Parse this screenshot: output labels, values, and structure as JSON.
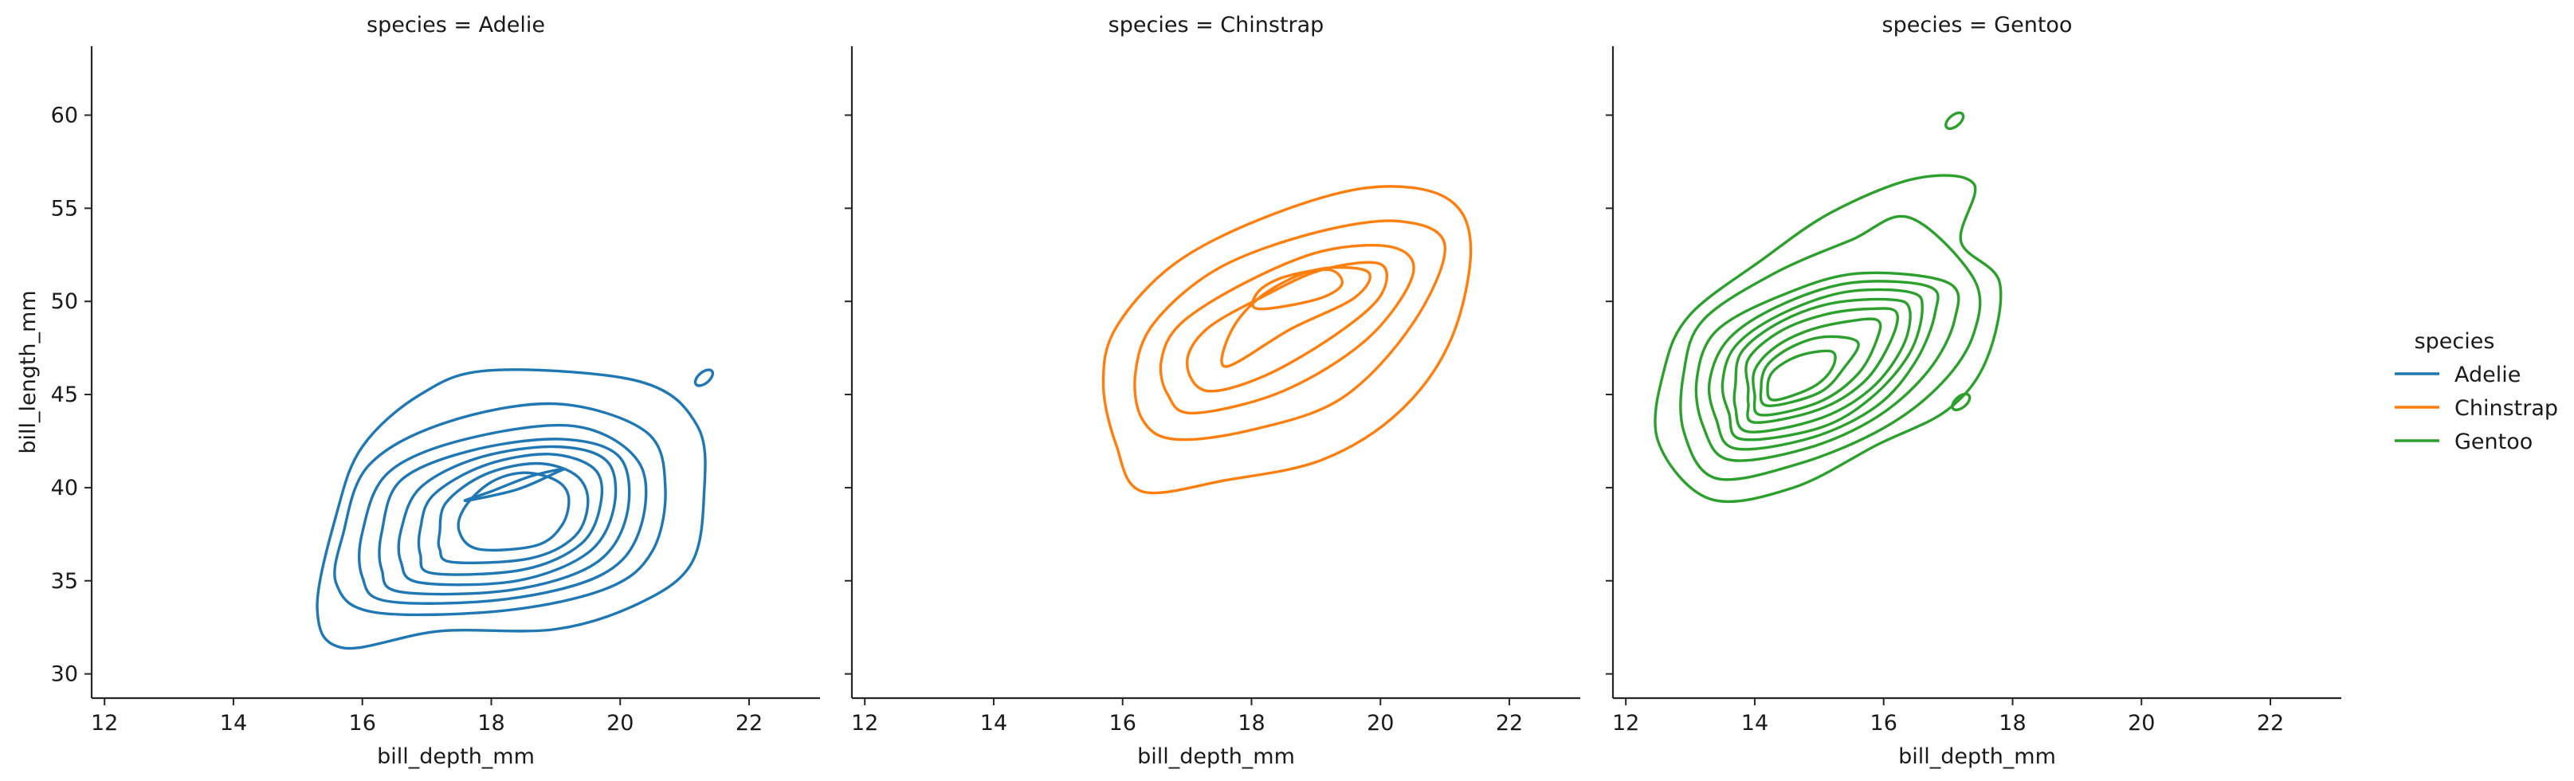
{
  "chart_data": {
    "type": "kde_contour_facets",
    "facet_variable": "species",
    "xlabel": "bill_depth_mm",
    "ylabel": "bill_length_mm",
    "xlim": [
      11.8,
      23.1
    ],
    "ylim": [
      28.7,
      63.7
    ],
    "xticks": [
      12,
      14,
      16,
      18,
      20,
      22
    ],
    "yticks": [
      30,
      35,
      40,
      45,
      50,
      55,
      60
    ],
    "legend": {
      "title": "species",
      "position": "right",
      "entries": [
        "Adelie",
        "Chinstrap",
        "Gentoo"
      ]
    },
    "panels": [
      {
        "title": "species = Adelie",
        "species": "Adelie",
        "color": "#1f77b4",
        "center": [
          18.4,
          39.6
        ],
        "outer_level": {
          "x_range": [
            15.3,
            21.4
          ],
          "y_range": [
            31.4,
            46.3
          ]
        },
        "extra_islands": [
          {
            "x": 21.3,
            "y": 45.9
          }
        ],
        "levels": [
          [
            [
              15.7,
              31.4
            ],
            [
              17.2,
              32.3
            ],
            [
              19.0,
              32.4
            ],
            [
              20.3,
              33.8
            ],
            [
              21.1,
              35.9
            ],
            [
              21.3,
              39.6
            ],
            [
              21.2,
              43.3
            ],
            [
              20.3,
              45.7
            ],
            [
              18.0,
              46.3
            ],
            [
              16.9,
              45.0
            ],
            [
              16.0,
              42.2
            ],
            [
              15.6,
              38.6
            ],
            [
              15.3,
              33.5
            ]
          ],
          [
            [
              16.2,
              33.3
            ],
            [
              18.2,
              33.4
            ],
            [
              19.8,
              34.6
            ],
            [
              20.5,
              36.6
            ],
            [
              20.7,
              40.0
            ],
            [
              20.4,
              43.0
            ],
            [
              19.0,
              44.5
            ],
            [
              17.3,
              43.5
            ],
            [
              16.1,
              41.2
            ],
            [
              15.7,
              37.5
            ],
            [
              15.6,
              34.8
            ]
          ],
          [
            [
              16.4,
              33.9
            ],
            [
              18.2,
              34.0
            ],
            [
              19.7,
              35.3
            ],
            [
              20.3,
              37.7
            ],
            [
              20.3,
              41.3
            ],
            [
              19.3,
              43.3
            ],
            [
              17.6,
              42.6
            ],
            [
              16.4,
              40.8
            ],
            [
              16.0,
              37.6
            ],
            [
              16.0,
              35.2
            ]
          ],
          [
            [
              16.6,
              34.4
            ],
            [
              18.3,
              34.5
            ],
            [
              19.6,
              35.9
            ],
            [
              20.1,
              38.5
            ],
            [
              20.0,
              41.6
            ],
            [
              19.1,
              42.6
            ],
            [
              17.7,
              42.0
            ],
            [
              16.6,
              40.4
            ],
            [
              16.3,
              37.6
            ],
            [
              16.3,
              35.6
            ]
          ],
          [
            [
              16.9,
              34.9
            ],
            [
              18.4,
              35.0
            ],
            [
              19.5,
              36.5
            ],
            [
              19.9,
              38.9
            ],
            [
              19.8,
              41.4
            ],
            [
              19.0,
              42.2
            ],
            [
              17.8,
              41.6
            ],
            [
              16.9,
              40.0
            ],
            [
              16.6,
              37.7
            ],
            [
              16.6,
              36.0
            ]
          ],
          [
            [
              17.1,
              35.4
            ],
            [
              18.5,
              35.6
            ],
            [
              19.4,
              37.0
            ],
            [
              19.7,
              39.2
            ],
            [
              19.6,
              41.0
            ],
            [
              18.9,
              41.8
            ],
            [
              17.9,
              41.2
            ],
            [
              17.1,
              39.6
            ],
            [
              16.9,
              37.8
            ],
            [
              16.9,
              36.4
            ]
          ],
          [
            [
              17.4,
              36.0
            ],
            [
              18.6,
              36.2
            ],
            [
              19.3,
              37.4
            ],
            [
              19.5,
              39.3
            ],
            [
              19.3,
              40.7
            ],
            [
              18.7,
              41.3
            ],
            [
              17.9,
              40.7
            ],
            [
              17.3,
              39.2
            ],
            [
              17.2,
              37.6
            ],
            [
              17.2,
              36.7
            ]
          ],
          [
            [
              17.8,
              36.7
            ],
            [
              18.7,
              36.9
            ],
            [
              19.1,
              38.0
            ],
            [
              19.2,
              39.5
            ],
            [
              19.0,
              40.4
            ],
            [
              18.5,
              40.8
            ],
            [
              18.0,
              40.3
            ],
            [
              17.6,
              39.0
            ],
            [
              17.5,
              37.7
            ]
          ],
          [
            [
              17.6,
              39.3
            ],
            [
              18.4,
              39.9
            ],
            [
              19.0,
              40.8
            ],
            [
              19.1,
              41.0
            ],
            [
              18.6,
              40.6
            ],
            [
              18.0,
              39.8
            ]
          ]
        ]
      },
      {
        "title": "species = Chinstrap",
        "species": "Chinstrap",
        "color": "#ff7f0e",
        "center": [
          18.8,
          50.3
        ],
        "outer_level": {
          "x_range": [
            15.7,
            21.4
          ],
          "y_range": [
            39.8,
            56.1
          ]
        },
        "extra_islands": [],
        "levels": [
          [
            [
              16.3,
              39.8
            ],
            [
              17.6,
              40.4
            ],
            [
              19.1,
              41.5
            ],
            [
              20.3,
              44.1
            ],
            [
              21.1,
              48.0
            ],
            [
              21.4,
              53.0
            ],
            [
              21.0,
              55.6
            ],
            [
              19.8,
              56.1
            ],
            [
              18.2,
              54.5
            ],
            [
              16.8,
              52.0
            ],
            [
              15.9,
              48.6
            ],
            [
              15.7,
              45.6
            ],
            [
              15.9,
              42.3
            ]
          ],
          [
            [
              16.8,
              42.6
            ],
            [
              18.0,
              43.1
            ],
            [
              19.4,
              44.8
            ],
            [
              20.5,
              48.8
            ],
            [
              21.0,
              53.0
            ],
            [
              20.3,
              54.3
            ],
            [
              19.0,
              53.7
            ],
            [
              17.5,
              51.8
            ],
            [
              16.5,
              48.9
            ],
            [
              16.2,
              46.2
            ],
            [
              16.3,
              43.7
            ]
          ],
          [
            [
              17.1,
              44.0
            ],
            [
              18.5,
              45.2
            ],
            [
              19.8,
              48.0
            ],
            [
              20.5,
              51.4
            ],
            [
              20.2,
              52.9
            ],
            [
              19.1,
              52.7
            ],
            [
              17.9,
              51.0
            ],
            [
              16.9,
              48.8
            ],
            [
              16.6,
              46.8
            ],
            [
              16.7,
              45.0
            ]
          ],
          [
            [
              17.3,
              45.2
            ],
            [
              18.2,
              46.0
            ],
            [
              19.3,
              48.2
            ],
            [
              20.0,
              50.3
            ],
            [
              20.0,
              52.0
            ],
            [
              19.1,
              51.7
            ],
            [
              18.2,
              50.3
            ],
            [
              17.3,
              48.5
            ],
            [
              17.0,
              46.7
            ]
          ],
          [
            [
              17.6,
              46.5
            ],
            [
              18.6,
              48.5
            ],
            [
              19.6,
              50.2
            ],
            [
              19.8,
              51.6
            ],
            [
              19.0,
              51.7
            ],
            [
              18.2,
              50.4
            ],
            [
              17.7,
              48.5
            ]
          ],
          [
            [
              18.1,
              49.6
            ],
            [
              19.0,
              50.1
            ],
            [
              19.4,
              50.9
            ],
            [
              19.2,
              51.7
            ],
            [
              18.5,
              51.3
            ],
            [
              18.1,
              50.5
            ]
          ]
        ]
      },
      {
        "title": "species = Gentoo",
        "species": "Gentoo",
        "color": "#2ca02c",
        "center": [
          14.5,
          45.3
        ],
        "outer_level": {
          "x_range": [
            12.5,
            17.8
          ],
          "y_range": [
            39.4,
            56.6
          ]
        },
        "extra_islands": [
          {
            "x": 17.1,
            "y": 59.7
          },
          {
            "x": 17.2,
            "y": 44.6
          }
        ],
        "levels": [
          [
            [
              13.3,
              39.4
            ],
            [
              14.6,
              40.0
            ],
            [
              15.9,
              42.3
            ],
            [
              17.0,
              44.2
            ],
            [
              17.6,
              46.9
            ],
            [
              17.8,
              51.0
            ],
            [
              17.2,
              53.2
            ],
            [
              17.4,
              56.3
            ],
            [
              16.5,
              56.6
            ],
            [
              15.2,
              54.8
            ],
            [
              14.1,
              52.2
            ],
            [
              13.0,
              49.3
            ],
            [
              12.6,
              46.4
            ],
            [
              12.5,
              42.5
            ]
          ],
          [
            [
              13.4,
              40.5
            ],
            [
              14.7,
              41.3
            ],
            [
              16.0,
              43.2
            ],
            [
              16.9,
              45.6
            ],
            [
              17.4,
              48.3
            ],
            [
              17.4,
              51.2
            ],
            [
              16.4,
              54.5
            ],
            [
              15.5,
              53.3
            ],
            [
              14.3,
              51.5
            ],
            [
              13.2,
              49.0
            ],
            [
              12.9,
              46.2
            ],
            [
              12.9,
              43.0
            ]
          ],
          [
            [
              13.6,
              41.5
            ],
            [
              14.8,
              42.1
            ],
            [
              15.9,
              43.8
            ],
            [
              16.7,
              46.3
            ],
            [
              17.1,
              49.0
            ],
            [
              17.0,
              51.0
            ],
            [
              15.6,
              51.5
            ],
            [
              14.4,
              50.3
            ],
            [
              13.4,
              48.4
            ],
            [
              13.1,
              45.8
            ],
            [
              13.2,
              43.3
            ]
          ],
          [
            [
              13.7,
              42.1
            ],
            [
              14.9,
              42.7
            ],
            [
              15.9,
              44.4
            ],
            [
              16.5,
              46.8
            ],
            [
              16.8,
              49.4
            ],
            [
              16.7,
              50.8
            ],
            [
              15.5,
              51.0
            ],
            [
              14.4,
              49.8
            ],
            [
              13.6,
              48.0
            ],
            [
              13.3,
              45.7
            ],
            [
              13.4,
              43.7
            ]
          ],
          [
            [
              13.8,
              42.6
            ],
            [
              15.0,
              43.2
            ],
            [
              15.8,
              44.8
            ],
            [
              16.4,
              47.2
            ],
            [
              16.6,
              49.6
            ],
            [
              16.4,
              50.5
            ],
            [
              15.4,
              50.5
            ],
            [
              14.4,
              49.3
            ],
            [
              13.7,
              47.6
            ],
            [
              13.5,
              45.6
            ],
            [
              13.6,
              44.0
            ]
          ],
          [
            [
              13.9,
              43.0
            ],
            [
              15.0,
              43.7
            ],
            [
              15.8,
              45.3
            ],
            [
              16.3,
              47.6
            ],
            [
              16.4,
              49.6
            ],
            [
              16.1,
              50.1
            ],
            [
              15.2,
              49.9
            ],
            [
              14.4,
              48.9
            ],
            [
              13.8,
              47.3
            ],
            [
              13.7,
              45.5
            ],
            [
              13.7,
              44.3
            ]
          ],
          [
            [
              14.0,
              43.5
            ],
            [
              15.0,
              44.2
            ],
            [
              15.7,
              45.7
            ],
            [
              16.1,
              47.8
            ],
            [
              16.2,
              49.4
            ],
            [
              15.8,
              49.6
            ],
            [
              15.1,
              49.3
            ],
            [
              14.4,
              48.4
            ],
            [
              13.9,
              46.9
            ],
            [
              13.9,
              45.3
            ],
            [
              13.9,
              44.5
            ]
          ],
          [
            [
              14.1,
              43.9
            ],
            [
              15.0,
              44.6
            ],
            [
              15.6,
              46.1
            ],
            [
              15.9,
              48.0
            ],
            [
              15.9,
              49.0
            ],
            [
              15.4,
              48.9
            ],
            [
              14.8,
              48.4
            ],
            [
              14.3,
              47.5
            ],
            [
              14.0,
              46.3
            ],
            [
              14.0,
              45.0
            ]
          ],
          [
            [
              14.2,
              44.4
            ],
            [
              15.0,
              45.1
            ],
            [
              15.4,
              46.5
            ],
            [
              15.6,
              47.8
            ],
            [
              15.1,
              48.1
            ],
            [
              14.6,
              47.6
            ],
            [
              14.2,
              46.6
            ],
            [
              14.1,
              45.4
            ]
          ],
          [
            [
              14.3,
              44.7
            ],
            [
              14.9,
              45.4
            ],
            [
              15.2,
              46.4
            ],
            [
              15.2,
              47.3
            ],
            [
              14.7,
              47.1
            ],
            [
              14.3,
              46.3
            ],
            [
              14.2,
              45.4
            ]
          ]
        ]
      }
    ]
  }
}
